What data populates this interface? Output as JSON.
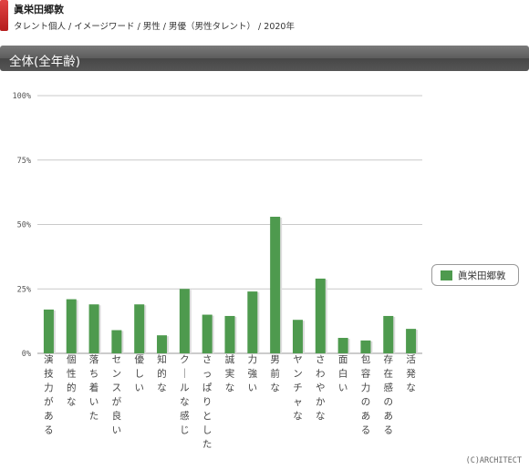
{
  "header": {
    "person_name": "眞栄田郷敦",
    "breadcrumb": "タレント個人 / イメージワード / 男性 / 男優（男性タレント） / 2020年"
  },
  "section": {
    "title": "全体(全年齢)"
  },
  "legend": {
    "label": "眞栄田郷敦",
    "color": "#4e9a4e"
  },
  "copyright": "(C)ARCHITECT",
  "chart_data": {
    "type": "bar",
    "categories": [
      "演技力がある",
      "個性的な",
      "落ち着いた",
      "センスが良い",
      "優しい",
      "知的な",
      "クールな感じ",
      "さっぱりとした",
      "誠実な",
      "力強い",
      "男前な",
      "ヤンチャな",
      "さわやかな",
      "面白い",
      "包容力のある",
      "存在感のある",
      "活発な"
    ],
    "series": [
      {
        "name": "眞栄田郷敦",
        "color": "#4e9a4e",
        "values": [
          17,
          21,
          19,
          9,
          19,
          7,
          25,
          15,
          14.5,
          24,
          53,
          13,
          29,
          6,
          5,
          14.5,
          9.5
        ]
      }
    ],
    "ylim": [
      0,
      100
    ],
    "yticks": [
      0,
      25,
      50,
      75,
      100
    ],
    "ytick_labels": [
      "0%",
      "25%",
      "50%",
      "75%",
      "100%"
    ],
    "grid": true,
    "legend_position": "right"
  }
}
